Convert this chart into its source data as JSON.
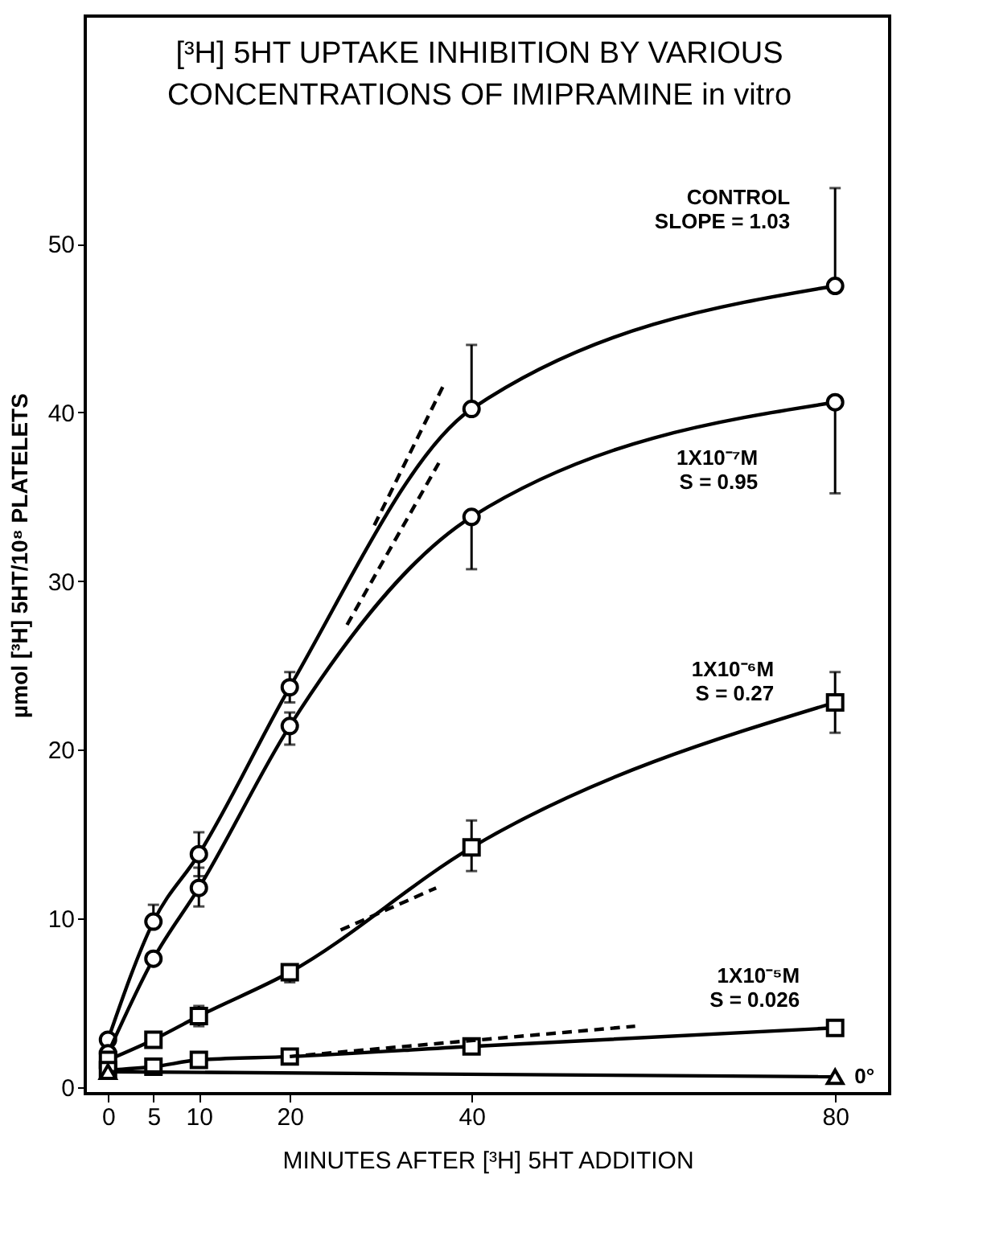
{
  "chart_data": {
    "type": "line",
    "title": "[³H] 5HT UPTAKE INHIBITION BY VARIOUS\nCONCENTRATIONS OF IMIPRAMINE in vitro",
    "xlabel": "MINUTES AFTER [³H] 5HT ADDITION",
    "ylabel": "µmol [³H] 5HT/10⁸ PLATELETS",
    "x": [
      0,
      5,
      10,
      20,
      40,
      80
    ],
    "xlim": [
      -2.5,
      86
    ],
    "xticks": [
      0,
      5,
      10,
      20,
      40,
      80
    ],
    "ylim": [
      -0.4,
      63.5
    ],
    "yticks": [
      0,
      10,
      20,
      30,
      40,
      50
    ],
    "grid": false,
    "series": [
      {
        "name": "CONTROL\nSLOPE = 1.03",
        "color": "#000000",
        "marker": "circle",
        "line_style": "solid",
        "values": [
          2.8,
          9.8,
          13.8,
          23.7,
          40.2,
          47.5
        ],
        "errors": [
          null,
          [
            9.8,
            10.8
          ],
          [
            12.5,
            15.1
          ],
          [
            22.8,
            24.6
          ],
          [
            40.2,
            44.0
          ],
          [
            47.5,
            53.3
          ]
        ]
      },
      {
        "name": "1X10⁻⁷M\nS = 0.95",
        "color": "#000000",
        "marker": "circle",
        "line_style": "solid",
        "values": [
          2.0,
          7.6,
          11.8,
          21.4,
          33.8,
          40.6
        ],
        "errors": [
          null,
          null,
          [
            10.7,
            13.0
          ],
          [
            20.3,
            22.2
          ],
          [
            30.7,
            33.8
          ],
          [
            35.2,
            40.6
          ]
        ]
      },
      {
        "name": "1X10⁻⁶M\nS = 0.27",
        "color": "#000000",
        "marker": "square",
        "line_style": "solid",
        "values": [
          1.6,
          2.8,
          4.2,
          6.8,
          14.2,
          22.8
        ],
        "errors": [
          null,
          null,
          [
            3.6,
            4.8
          ],
          [
            6.2,
            7.2
          ],
          [
            12.8,
            15.8
          ],
          [
            21.0,
            24.6
          ]
        ]
      },
      {
        "name": "1X10⁻⁵M\nS = 0.026",
        "color": "#000000",
        "marker": "square",
        "line_style": "solid",
        "values": [
          1.0,
          1.2,
          1.6,
          1.8,
          2.4,
          3.5
        ]
      },
      {
        "name": "0°",
        "color": "#000000",
        "marker": "triangle",
        "line_style": "solid",
        "x": [
          0,
          80
        ],
        "values": [
          0.9,
          0.6
        ]
      },
      {
        "color": "#000000",
        "marker": "none",
        "line_style": "dashed",
        "x": [
          29.3,
          37
        ],
        "values": [
          33.3,
          41.7
        ]
      },
      {
        "color": "#000000",
        "marker": "none",
        "line_style": "dashed",
        "x": [
          26.3,
          36.4
        ],
        "values": [
          27.4,
          37.0
        ]
      },
      {
        "color": "#000000",
        "marker": "none",
        "line_style": "dashed",
        "x": [
          25.6,
          36.1
        ],
        "values": [
          9.3,
          11.8
        ]
      },
      {
        "color": "#000000",
        "marker": "none",
        "line_style": "dashed",
        "x": [
          20,
          58
        ],
        "values": [
          1.8,
          3.6
        ]
      }
    ]
  }
}
